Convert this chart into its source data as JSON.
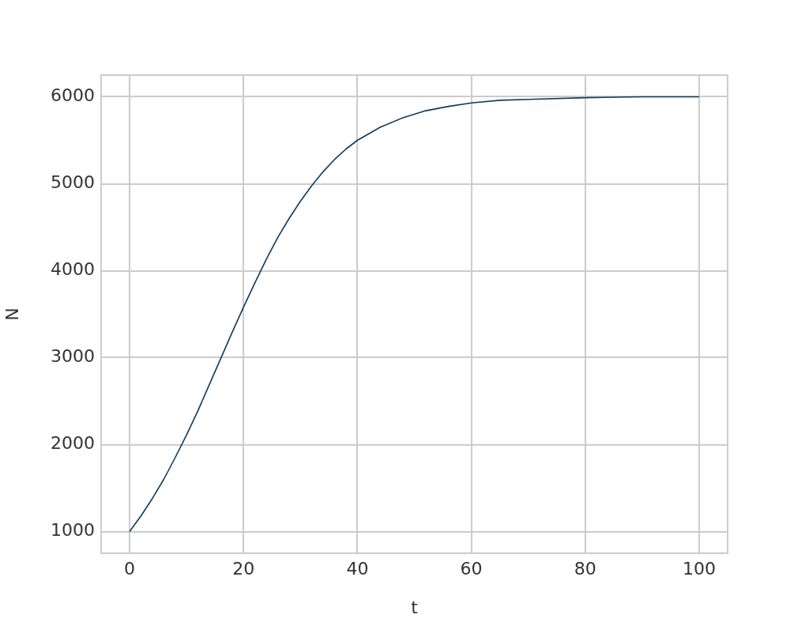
{
  "chart_data": {
    "type": "line",
    "xlabel": "t",
    "ylabel": "N",
    "x": [
      0,
      2,
      4,
      6,
      8,
      10,
      12,
      14,
      16,
      18,
      20,
      22,
      24,
      26,
      28,
      30,
      32,
      34,
      36,
      38,
      40,
      44,
      48,
      52,
      56,
      60,
      65,
      70,
      80,
      90,
      100
    ],
    "values": [
      1000,
      1180,
      1380,
      1600,
      1850,
      2110,
      2390,
      2690,
      2990,
      3290,
      3580,
      3860,
      4130,
      4380,
      4600,
      4800,
      4980,
      5140,
      5280,
      5400,
      5500,
      5650,
      5760,
      5840,
      5890,
      5930,
      5960,
      5970,
      5990,
      6000,
      6000
    ],
    "color": "#0d3b5e",
    "xlim": [
      -5,
      105
    ],
    "ylim": [
      750,
      6250
    ],
    "xticks": [
      0,
      20,
      40,
      60,
      80,
      100
    ],
    "yticks": [
      1000,
      2000,
      3000,
      4000,
      5000,
      6000
    ],
    "grid": true
  }
}
